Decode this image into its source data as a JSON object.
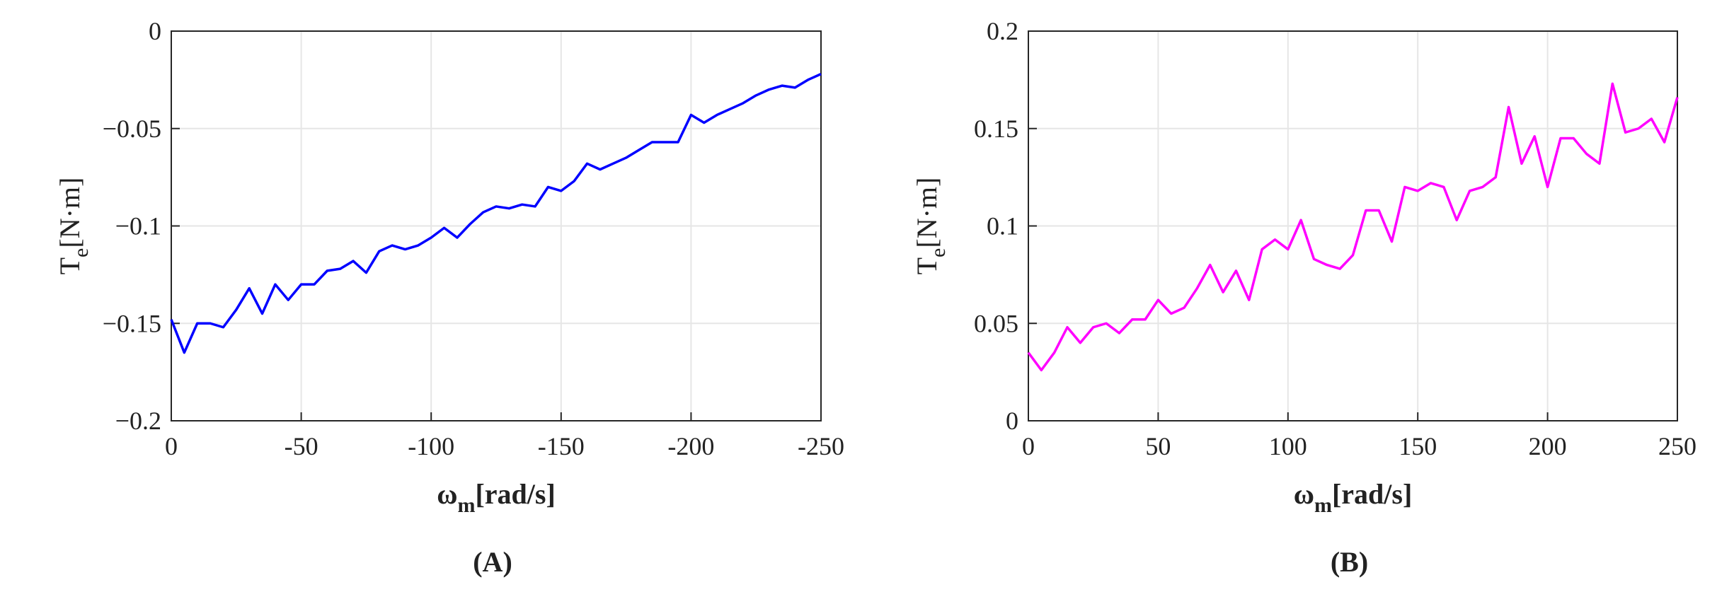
{
  "chart_data": [
    {
      "type": "line",
      "panel_label": "(A)",
      "xlabel": [
        "ω",
        "m",
        "[rad/s]"
      ],
      "ylabel": [
        "T",
        "e",
        "[N·m]"
      ],
      "xlim": [
        0,
        -250
      ],
      "ylim": [
        -0.2,
        0
      ],
      "xticks": [
        0,
        -50,
        -100,
        -150,
        -200,
        -250
      ],
      "yticks": [
        {
          "value": -0.2,
          "label": "−0.2"
        },
        {
          "value": -0.15,
          "label": "−0.15"
        },
        {
          "value": -0.1,
          "label": "−0.1"
        },
        {
          "value": -0.05,
          "label": "−0.05"
        },
        0
      ],
      "grid": true,
      "x": [
        0,
        -5,
        -10,
        -15,
        -20,
        -25,
        -30,
        -35,
        -40,
        -45,
        -50,
        -55,
        -60,
        -65,
        -70,
        -75,
        -80,
        -85,
        -90,
        -95,
        -100,
        -105,
        -110,
        -115,
        -120,
        -125,
        -130,
        -135,
        -140,
        -145,
        -150,
        -155,
        -160,
        -165,
        -170,
        -175,
        -180,
        -185,
        -190,
        -195,
        -200,
        -205,
        -210,
        -215,
        -220,
        -225,
        -230,
        -235,
        -240,
        -245,
        -250
      ],
      "series": [
        {
          "color": "#0000ff",
          "values": [
            -0.148,
            -0.165,
            -0.15,
            -0.15,
            -0.152,
            -0.143,
            -0.132,
            -0.145,
            -0.13,
            -0.138,
            -0.13,
            -0.13,
            -0.123,
            -0.122,
            -0.118,
            -0.124,
            -0.113,
            -0.11,
            -0.112,
            -0.11,
            -0.106,
            -0.101,
            -0.106,
            -0.099,
            -0.093,
            -0.09,
            -0.091,
            -0.089,
            -0.09,
            -0.08,
            -0.082,
            -0.077,
            -0.068,
            -0.071,
            -0.068,
            -0.065,
            -0.061,
            -0.057,
            -0.057,
            -0.057,
            -0.043,
            -0.047,
            -0.043,
            -0.04,
            -0.037,
            -0.033,
            -0.03,
            -0.028,
            -0.029,
            -0.025,
            -0.022
          ]
        }
      ]
    },
    {
      "type": "line",
      "panel_label": "(B)",
      "xlabel": [
        "ω",
        "m",
        "[rad/s]"
      ],
      "ylabel": [
        "T",
        "e",
        "[N·m]"
      ],
      "xlim": [
        0,
        250
      ],
      "ylim": [
        0,
        0.2
      ],
      "xticks": [
        0,
        50,
        100,
        150,
        200,
        250
      ],
      "yticks": [
        0,
        0.05,
        0.1,
        0.15,
        0.2
      ],
      "grid": true,
      "x": [
        0,
        5,
        10,
        15,
        20,
        25,
        30,
        35,
        40,
        45,
        50,
        55,
        60,
        65,
        70,
        75,
        80,
        85,
        90,
        95,
        100,
        105,
        110,
        115,
        120,
        125,
        130,
        135,
        140,
        145,
        150,
        155,
        160,
        165,
        170,
        175,
        180,
        185,
        190,
        195,
        200,
        205,
        210,
        215,
        220,
        225,
        230,
        235,
        240,
        245,
        250
      ],
      "series": [
        {
          "color": "#ff00ff",
          "values": [
            0.035,
            0.026,
            0.035,
            0.048,
            0.04,
            0.048,
            0.05,
            0.045,
            0.052,
            0.052,
            0.062,
            0.055,
            0.058,
            0.068,
            0.08,
            0.066,
            0.077,
            0.062,
            0.088,
            0.093,
            0.088,
            0.103,
            0.083,
            0.08,
            0.078,
            0.085,
            0.108,
            0.108,
            0.092,
            0.12,
            0.118,
            0.122,
            0.12,
            0.103,
            0.118,
            0.12,
            0.125,
            0.161,
            0.132,
            0.146,
            0.12,
            0.145,
            0.145,
            0.137,
            0.132,
            0.173,
            0.148,
            0.15,
            0.155,
            0.143,
            0.166
          ]
        }
      ]
    }
  ]
}
